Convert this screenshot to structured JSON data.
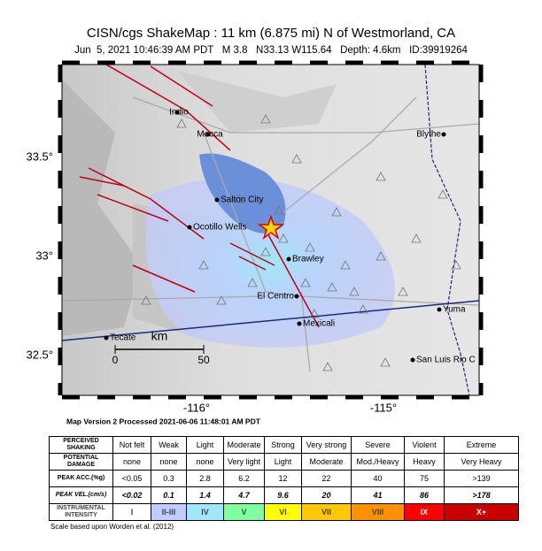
{
  "header": {
    "title": "CISN/cgs ShakeMap : 11 km (6.875 mi) N of Westmorland, CA",
    "subtitle": "Jun  5, 2021 10:46:39 AM PDT   M 3.8   N33.13 W115.64   Depth: 4.6km   ID:39919264"
  },
  "map": {
    "latitude_labels": [
      "33.5°",
      "33°",
      "32.5°"
    ],
    "longitude_labels": [
      "-116°",
      "-115°"
    ],
    "cities": [
      "Indio",
      "Mecca",
      "Blythe",
      "Salton City",
      "Ocotillo Wells",
      "Brawley",
      "El Centro",
      "Yuma",
      "Mexicali",
      "Tecate",
      "San Luis Rio C"
    ],
    "scale": {
      "unit": "km",
      "start": "0",
      "end": "50"
    },
    "version": "Map Version 2 Processed 2021-06-06 11:48:01 AM PDT"
  },
  "table": {
    "rows": [
      [
        "PERCEIVED SHAKING",
        "Not felt",
        "Weak",
        "Light",
        "Moderate",
        "Strong",
        "Very strong",
        "Severe",
        "Violent",
        "Extreme"
      ],
      [
        "POTENTIAL DAMAGE",
        "none",
        "none",
        "none",
        "Very light",
        "Light",
        "Moderate",
        "Mod./Heavy",
        "Heavy",
        "Very Heavy"
      ],
      [
        "PEAK ACC.(%g)",
        "<0.05",
        "0.3",
        "2.8",
        "6.2",
        "12",
        "22",
        "40",
        "75",
        ">139"
      ],
      [
        "PEAK VEL.(cm/s)",
        "<0.02",
        "0.1",
        "1.4",
        "4.7",
        "9.6",
        "20",
        "41",
        "86",
        ">178"
      ],
      [
        "INSTRUMENTAL INTENSITY",
        "I",
        "II-III",
        "IV",
        "V",
        "VI",
        "VII",
        "VIII",
        "IX",
        "X+"
      ]
    ]
  },
  "footnote": "Scale based upon Worden et al. (2012)"
}
